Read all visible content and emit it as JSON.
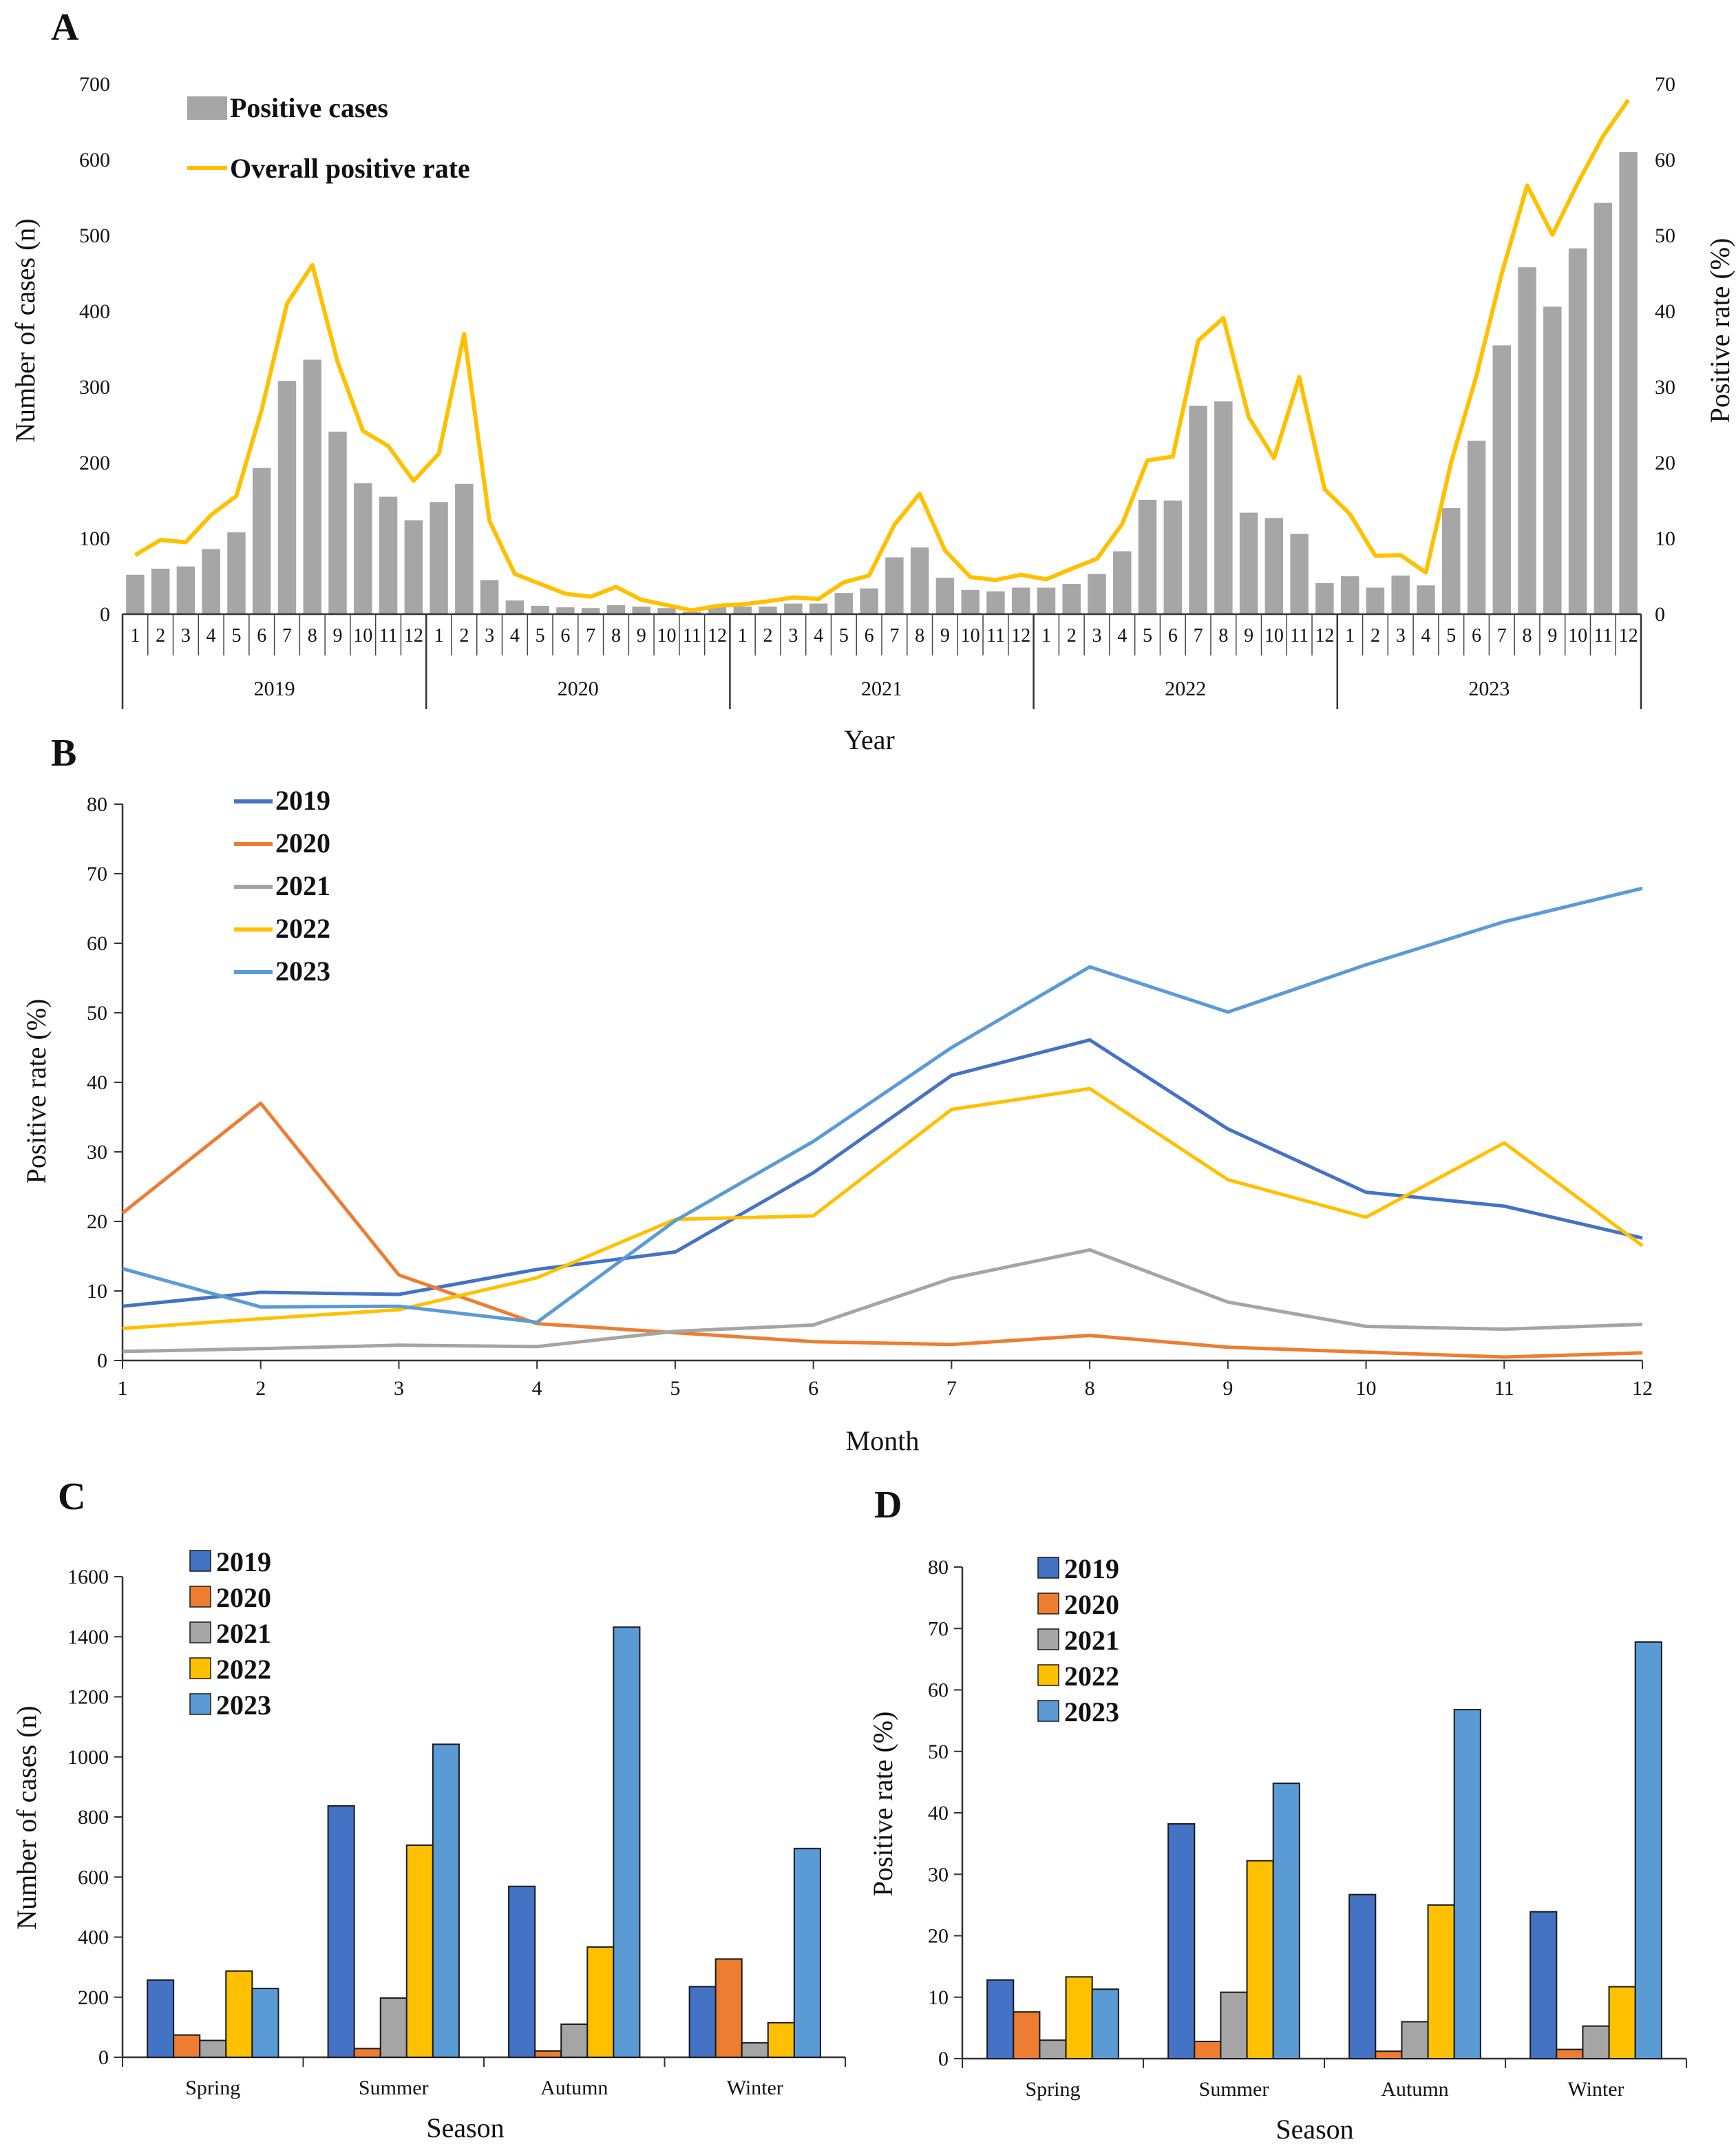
{
  "panels": {
    "A": {
      "letter": "A",
      "ylabel_left": "Number of  cases (n)",
      "ylabel_right": "Positive rate (%)",
      "xlabel": "Year",
      "legend": {
        "bars": "Positive cases",
        "line": "Overall positive rate"
      },
      "left_ticks": [
        "0",
        "100",
        "200",
        "300",
        "400",
        "500",
        "600",
        "700"
      ],
      "right_ticks": [
        "0",
        "10",
        "20",
        "30",
        "40",
        "50",
        "60",
        "70"
      ],
      "years": [
        "2019",
        "2020",
        "2021",
        "2022",
        "2023"
      ],
      "month_labels": [
        "1",
        "2",
        "3",
        "4",
        "5",
        "6",
        "7",
        "8",
        "9",
        "10",
        "11",
        "12"
      ]
    },
    "B": {
      "letter": "B",
      "ylabel": "Positive rate (%)",
      "xlabel": "Month",
      "y_ticks": [
        "0",
        "10",
        "20",
        "30",
        "40",
        "50",
        "60",
        "70",
        "80"
      ],
      "x_ticks": [
        "1",
        "2",
        "3",
        "4",
        "5",
        "6",
        "7",
        "8",
        "9",
        "10",
        "11",
        "12"
      ],
      "legend": [
        "2019",
        "2020",
        "2021",
        "2022",
        "2023"
      ]
    },
    "C": {
      "letter": "C",
      "ylabel": "Number of cases (n)",
      "xlabel": "Season",
      "y_ticks": [
        "0",
        "200",
        "400",
        "600",
        "800",
        "1000",
        "1200",
        "1400",
        "1600"
      ],
      "legend": [
        "2019",
        "2020",
        "2021",
        "2022",
        "2023"
      ]
    },
    "D": {
      "letter": "D",
      "ylabel": "Positive rate (%)",
      "xlabel": "Season",
      "y_ticks": [
        "0",
        "10",
        "20",
        "30",
        "40",
        "50",
        "60",
        "70",
        "80"
      ],
      "legend": [
        "2019",
        "2020",
        "2021",
        "2022",
        "2023"
      ]
    }
  },
  "colors": {
    "bar_gray": "#a6a6a6",
    "line_yellow": "#ffc000",
    "y2019": "#4472c4",
    "y2020": "#ed7d31",
    "y2021": "#a5a5a5",
    "y2022": "#ffc000",
    "y2023": "#5b9bd5"
  },
  "chart_data": [
    {
      "panel": "A",
      "type": "bar+line",
      "title": "",
      "xlabel": "Year",
      "ylabel": "Number of  cases (n)",
      "y2label": "Positive rate (%)",
      "ylim": [
        0,
        700
      ],
      "y2lim": [
        0,
        70
      ],
      "years": [
        "2019",
        "2020",
        "2021",
        "2022",
        "2023"
      ],
      "series": [
        {
          "name": "Positive cases",
          "axis": "left",
          "values": [
            52,
            60,
            63,
            86,
            108,
            193,
            308,
            336,
            241,
            173,
            155,
            124,
            148,
            172,
            45,
            18,
            11,
            9,
            8,
            12,
            10,
            8,
            3,
            10,
            10,
            10,
            14,
            14,
            28,
            34,
            75,
            88,
            48,
            32,
            30,
            35,
            35,
            40,
            53,
            83,
            151,
            150,
            275,
            281,
            134,
            127,
            106,
            41,
            50,
            35,
            51,
            38,
            140,
            229,
            355,
            458,
            406,
            483,
            543,
            610
          ]
        },
        {
          "name": "Overall positive rate",
          "axis": "right",
          "values": [
            7.8,
            9.8,
            9.5,
            13.1,
            15.6,
            27.0,
            41.0,
            46.1,
            33.3,
            24.2,
            22.2,
            17.6,
            21.2,
            37.0,
            12.3,
            5.3,
            4.0,
            2.7,
            2.3,
            3.6,
            1.9,
            1.2,
            0.5,
            1.1,
            1.3,
            1.7,
            2.2,
            2.0,
            4.2,
            5.1,
            11.8,
            15.9,
            8.4,
            4.9,
            4.5,
            5.2,
            4.6,
            6.0,
            7.3,
            11.9,
            20.3,
            20.8,
            36.1,
            39.1,
            26.0,
            20.6,
            31.3,
            16.5,
            13.2,
            7.7,
            7.8,
            5.5,
            20.1,
            31.5,
            45.0,
            56.6,
            50.1,
            56.9,
            63.1,
            67.9
          ]
        }
      ]
    },
    {
      "panel": "B",
      "type": "line",
      "title": "",
      "xlabel": "Month",
      "ylabel": "Positive rate (%)",
      "ylim": [
        0,
        80
      ],
      "x": [
        1,
        2,
        3,
        4,
        5,
        6,
        7,
        8,
        9,
        10,
        11,
        12
      ],
      "series": [
        {
          "name": "2019",
          "values": [
            7.8,
            9.8,
            9.5,
            13.1,
            15.6,
            27.0,
            41.0,
            46.1,
            33.3,
            24.2,
            22.2,
            17.6
          ]
        },
        {
          "name": "2020",
          "values": [
            21.2,
            37.0,
            12.3,
            5.3,
            4.0,
            2.7,
            2.3,
            3.6,
            1.9,
            1.2,
            0.5,
            1.1
          ]
        },
        {
          "name": "2021",
          "values": [
            1.3,
            1.7,
            2.2,
            2.0,
            4.2,
            5.1,
            11.8,
            15.9,
            8.4,
            4.9,
            4.5,
            5.2
          ]
        },
        {
          "name": "2022",
          "values": [
            4.6,
            6.0,
            7.3,
            11.9,
            20.3,
            20.8,
            36.1,
            39.1,
            26.0,
            20.6,
            31.3,
            16.5
          ]
        },
        {
          "name": "2023",
          "values": [
            13.2,
            7.7,
            7.8,
            5.5,
            20.1,
            31.5,
            45.0,
            56.6,
            50.1,
            56.9,
            63.1,
            67.9
          ]
        }
      ]
    },
    {
      "panel": "C",
      "type": "bar",
      "title": "",
      "xlabel": "Season",
      "ylabel": "Number of cases (n)",
      "ylim": [
        0,
        1600
      ],
      "categories": [
        "Spring",
        "Summer",
        "Autumn",
        "Winter"
      ],
      "series": [
        {
          "name": "2019",
          "values": [
            257,
            837,
            569,
            235
          ]
        },
        {
          "name": "2020",
          "values": [
            74,
            29,
            21,
            327
          ]
        },
        {
          "name": "2021",
          "values": [
            56,
            197,
            110,
            48
          ]
        },
        {
          "name": "2022",
          "values": [
            287,
            706,
            367,
            115
          ]
        },
        {
          "name": "2023",
          "values": [
            229,
            1042,
            1432,
            695
          ]
        }
      ]
    },
    {
      "panel": "D",
      "type": "bar",
      "title": "",
      "xlabel": "Season",
      "ylabel": "Positive rate (%)",
      "ylim": [
        0,
        80
      ],
      "categories": [
        "Spring",
        "Summer",
        "Autumn",
        "Winter"
      ],
      "series": [
        {
          "name": "2019",
          "values": [
            12.8,
            38.2,
            26.7,
            23.9
          ]
        },
        {
          "name": "2020",
          "values": [
            7.6,
            2.8,
            1.2,
            1.5
          ]
        },
        {
          "name": "2021",
          "values": [
            3.0,
            10.8,
            6.0,
            5.3
          ]
        },
        {
          "name": "2022",
          "values": [
            13.3,
            32.2,
            25.0,
            11.7
          ]
        },
        {
          "name": "2023",
          "values": [
            11.3,
            44.8,
            56.8,
            67.8
          ]
        }
      ]
    }
  ]
}
